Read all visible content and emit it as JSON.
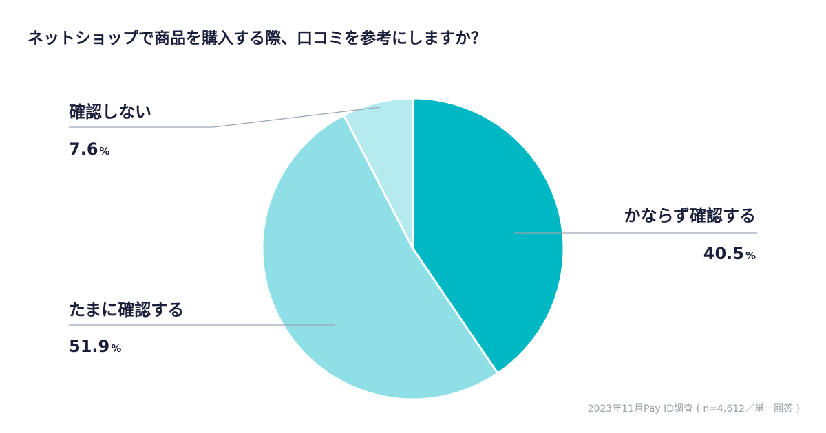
{
  "title": "ネットショップで商品を購入する際、口コミを参考にしますか？",
  "footnote": "2023年11月Pay ID調査 ( n=4,612／単一回答 )",
  "chart_data": {
    "type": "pie",
    "title": "ネットショップで商品を購入する際、口コミを参考にしますか？",
    "unit": "%",
    "slices": [
      {
        "label": "かならず確認する",
        "value": 40.5,
        "value_text": "40.5",
        "color": "#00b8c4"
      },
      {
        "label": "たまに確認する",
        "value": 51.9,
        "value_text": "51.9",
        "color": "#8fdfe6"
      },
      {
        "label": "確認しない",
        "value": 7.6,
        "value_text": "7.6",
        "color": "#b5eaee"
      }
    ],
    "start_angle": "12 o'clock",
    "direction": "clockwise",
    "legend": "none"
  },
  "colors": {
    "text": "#1a1e3a",
    "leader_line": "#9aa3b5",
    "footnote": "#9aa0a8",
    "slice_border": "#ffffff"
  }
}
